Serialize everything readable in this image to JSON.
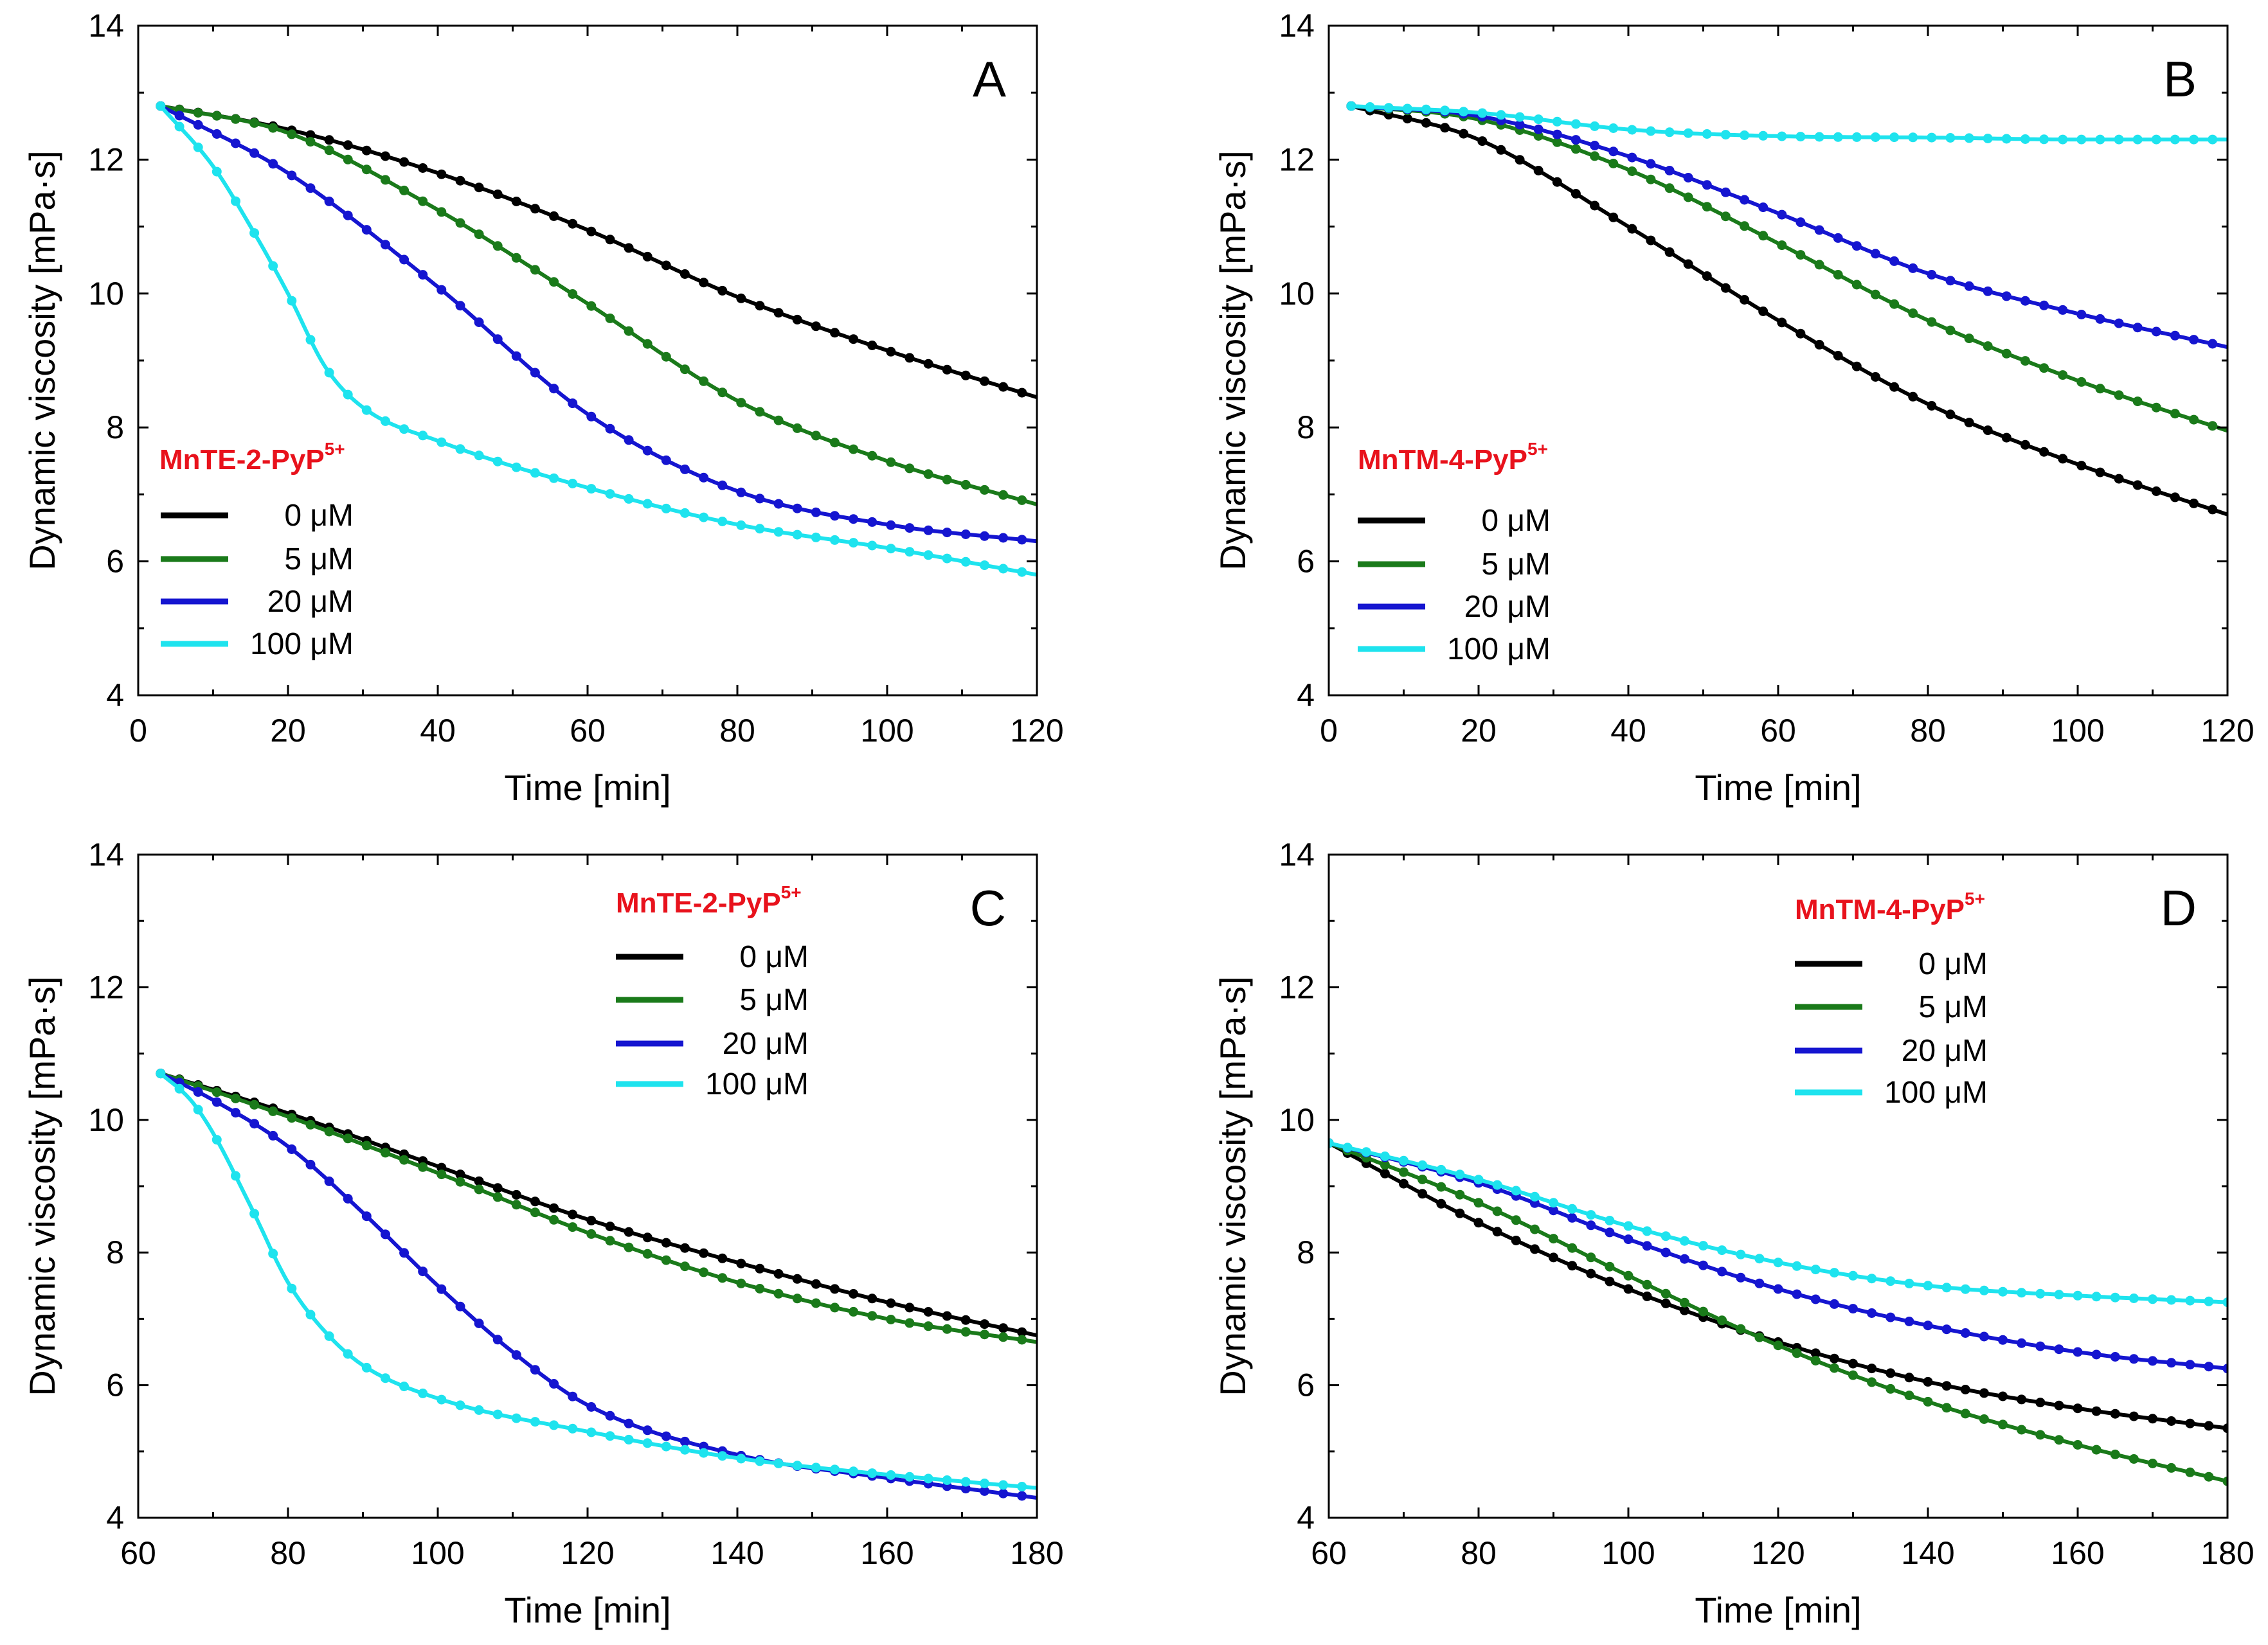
{
  "figure": {
    "background": "#ffffff"
  },
  "chart_data": [
    {
      "type": "line",
      "panel_label": "A",
      "xlabel": "Time [min]",
      "ylabel": "Dynamic viscosity [mPa·s]",
      "xlim": [
        0,
        120
      ],
      "ylim": [
        4,
        14
      ],
      "xticks": [
        0,
        20,
        40,
        60,
        80,
        100,
        120
      ],
      "yticks": [
        4,
        6,
        8,
        10,
        12,
        14
      ],
      "grid": false,
      "legend_position": "bottom-left",
      "legend_title": {
        "text": "MnTE-2-PyP",
        "superscript": "5+",
        "color": "#e8121c"
      },
      "series": [
        {
          "name": "0 μM",
          "color": "#000000",
          "points": [
            [
              3,
              12.8
            ],
            [
              20,
              12.45
            ],
            [
              40,
              11.8
            ],
            [
              60,
              10.95
            ],
            [
              80,
              9.95
            ],
            [
              100,
              9.15
            ],
            [
              120,
              8.45
            ]
          ]
        },
        {
          "name": "5 μM",
          "color": "#1a7a1a",
          "points": [
            [
              3,
              12.8
            ],
            [
              20,
              12.4
            ],
            [
              40,
              11.25
            ],
            [
              60,
              9.85
            ],
            [
              80,
              8.4
            ],
            [
              100,
              7.5
            ],
            [
              120,
              6.85
            ]
          ]
        },
        {
          "name": "20 μM",
          "color": "#1515d0",
          "points": [
            [
              3,
              12.8
            ],
            [
              20,
              11.8
            ],
            [
              40,
              10.1
            ],
            [
              60,
              8.2
            ],
            [
              80,
              7.05
            ],
            [
              100,
              6.55
            ],
            [
              120,
              6.3
            ]
          ]
        },
        {
          "name": "100 μM",
          "color": "#1ee3ee",
          "points": [
            [
              3,
              12.8
            ],
            [
              10,
              11.9
            ],
            [
              15,
              11.0
            ],
            [
              20,
              10.0
            ],
            [
              25,
              8.9
            ],
            [
              30,
              8.3
            ],
            [
              40,
              7.8
            ],
            [
              60,
              7.1
            ],
            [
              80,
              6.55
            ],
            [
              100,
              6.2
            ],
            [
              120,
              5.8
            ]
          ]
        }
      ]
    },
    {
      "type": "line",
      "panel_label": "B",
      "xlabel": "Time [min]",
      "ylabel": "Dynamic viscosity [mPa·s]",
      "xlim": [
        0,
        120
      ],
      "ylim": [
        4,
        14
      ],
      "xticks": [
        0,
        20,
        40,
        60,
        80,
        100,
        120
      ],
      "yticks": [
        4,
        6,
        8,
        10,
        12,
        14
      ],
      "grid": false,
      "legend_position": "bottom-left",
      "legend_title": {
        "text": "MnTM-4-PyP",
        "superscript": "5+",
        "color": "#e8121c"
      },
      "series": [
        {
          "name": "0 μM",
          "color": "#000000",
          "points": [
            [
              3,
              12.8
            ],
            [
              20,
              12.3
            ],
            [
              40,
              11.0
            ],
            [
              60,
              9.6
            ],
            [
              80,
              8.35
            ],
            [
              100,
              7.45
            ],
            [
              120,
              6.7
            ]
          ]
        },
        {
          "name": "5 μM",
          "color": "#1a7a1a",
          "points": [
            [
              3,
              12.8
            ],
            [
              20,
              12.6
            ],
            [
              40,
              11.85
            ],
            [
              60,
              10.75
            ],
            [
              80,
              9.6
            ],
            [
              100,
              8.7
            ],
            [
              120,
              7.95
            ]
          ]
        },
        {
          "name": "20 μM",
          "color": "#1515d0",
          "points": [
            [
              3,
              12.8
            ],
            [
              20,
              12.65
            ],
            [
              40,
              12.05
            ],
            [
              60,
              11.2
            ],
            [
              80,
              10.3
            ],
            [
              100,
              9.7
            ],
            [
              120,
              9.2
            ]
          ]
        },
        {
          "name": "100 μM",
          "color": "#1ee3ee",
          "points": [
            [
              3,
              12.8
            ],
            [
              20,
              12.7
            ],
            [
              40,
              12.45
            ],
            [
              60,
              12.35
            ],
            [
              80,
              12.33
            ],
            [
              100,
              12.3
            ],
            [
              120,
              12.3
            ]
          ]
        }
      ]
    },
    {
      "type": "line",
      "panel_label": "C",
      "xlabel": "Time [min]",
      "ylabel": "Dynamic viscosity [mPa·s]",
      "xlim": [
        60,
        180
      ],
      "ylim": [
        4,
        14
      ],
      "xticks": [
        60,
        80,
        100,
        120,
        140,
        160,
        180
      ],
      "yticks": [
        4,
        6,
        8,
        10,
        12,
        14
      ],
      "grid": false,
      "legend_position": "top-right",
      "legend_title": {
        "text": "MnTE-2-PyP",
        "superscript": "5+",
        "color": "#e8121c"
      },
      "series": [
        {
          "name": "0 μM",
          "color": "#000000",
          "points": [
            [
              63,
              10.7
            ],
            [
              80,
              10.1
            ],
            [
              100,
              9.3
            ],
            [
              120,
              8.5
            ],
            [
              140,
              7.85
            ],
            [
              160,
              7.25
            ],
            [
              180,
              6.75
            ]
          ]
        },
        {
          "name": "5 μM",
          "color": "#1a7a1a",
          "points": [
            [
              63,
              10.7
            ],
            [
              80,
              10.05
            ],
            [
              100,
              9.2
            ],
            [
              120,
              8.3
            ],
            [
              140,
              7.55
            ],
            [
              160,
              7.0
            ],
            [
              180,
              6.65
            ]
          ]
        },
        {
          "name": "20 μM",
          "color": "#1515d0",
          "points": [
            [
              63,
              10.7
            ],
            [
              70,
              10.3
            ],
            [
              80,
              9.6
            ],
            [
              90,
              8.6
            ],
            [
              100,
              7.5
            ],
            [
              110,
              6.5
            ],
            [
              120,
              5.7
            ],
            [
              140,
              4.95
            ],
            [
              160,
              4.6
            ],
            [
              180,
              4.3
            ]
          ]
        },
        {
          "name": "100 μM",
          "color": "#1ee3ee",
          "points": [
            [
              63,
              10.7
            ],
            [
              67,
              10.3
            ],
            [
              70,
              9.8
            ],
            [
              75,
              8.7
            ],
            [
              80,
              7.55
            ],
            [
              85,
              6.8
            ],
            [
              90,
              6.3
            ],
            [
              100,
              5.8
            ],
            [
              120,
              5.3
            ],
            [
              140,
              4.9
            ],
            [
              160,
              4.65
            ],
            [
              180,
              4.45
            ]
          ]
        }
      ]
    },
    {
      "type": "line",
      "panel_label": "D",
      "xlabel": "Time [min]",
      "ylabel": "Dynamic viscosity [mPa·s]",
      "xlim": [
        60,
        180
      ],
      "ylim": [
        4,
        14
      ],
      "xticks": [
        60,
        80,
        100,
        120,
        140,
        160,
        180
      ],
      "yticks": [
        4,
        6,
        8,
        10,
        12,
        14
      ],
      "grid": false,
      "legend_position": "top-right",
      "legend_title": {
        "text": "MnTM-4-PyP",
        "superscript": "5+",
        "color": "#e8121c"
      },
      "series": [
        {
          "name": "0 μM",
          "color": "#000000",
          "points": [
            [
              60,
              9.65
            ],
            [
              80,
              8.45
            ],
            [
              100,
              7.45
            ],
            [
              120,
              6.65
            ],
            [
              140,
              6.05
            ],
            [
              160,
              5.65
            ],
            [
              180,
              5.35
            ]
          ]
        },
        {
          "name": "5 μM",
          "color": "#1a7a1a",
          "points": [
            [
              60,
              9.65
            ],
            [
              80,
              8.75
            ],
            [
              100,
              7.65
            ],
            [
              120,
              6.6
            ],
            [
              140,
              5.75
            ],
            [
              160,
              5.1
            ],
            [
              180,
              4.55
            ]
          ]
        },
        {
          "name": "20 μM",
          "color": "#1515d0",
          "points": [
            [
              60,
              9.65
            ],
            [
              80,
              9.05
            ],
            [
              100,
              8.2
            ],
            [
              120,
              7.45
            ],
            [
              140,
              6.9
            ],
            [
              160,
              6.5
            ],
            [
              180,
              6.25
            ]
          ]
        },
        {
          "name": "100 μM",
          "color": "#1ee3ee",
          "points": [
            [
              60,
              9.65
            ],
            [
              80,
              9.1
            ],
            [
              100,
              8.4
            ],
            [
              120,
              7.85
            ],
            [
              140,
              7.5
            ],
            [
              160,
              7.35
            ],
            [
              180,
              7.25
            ]
          ]
        }
      ]
    }
  ]
}
